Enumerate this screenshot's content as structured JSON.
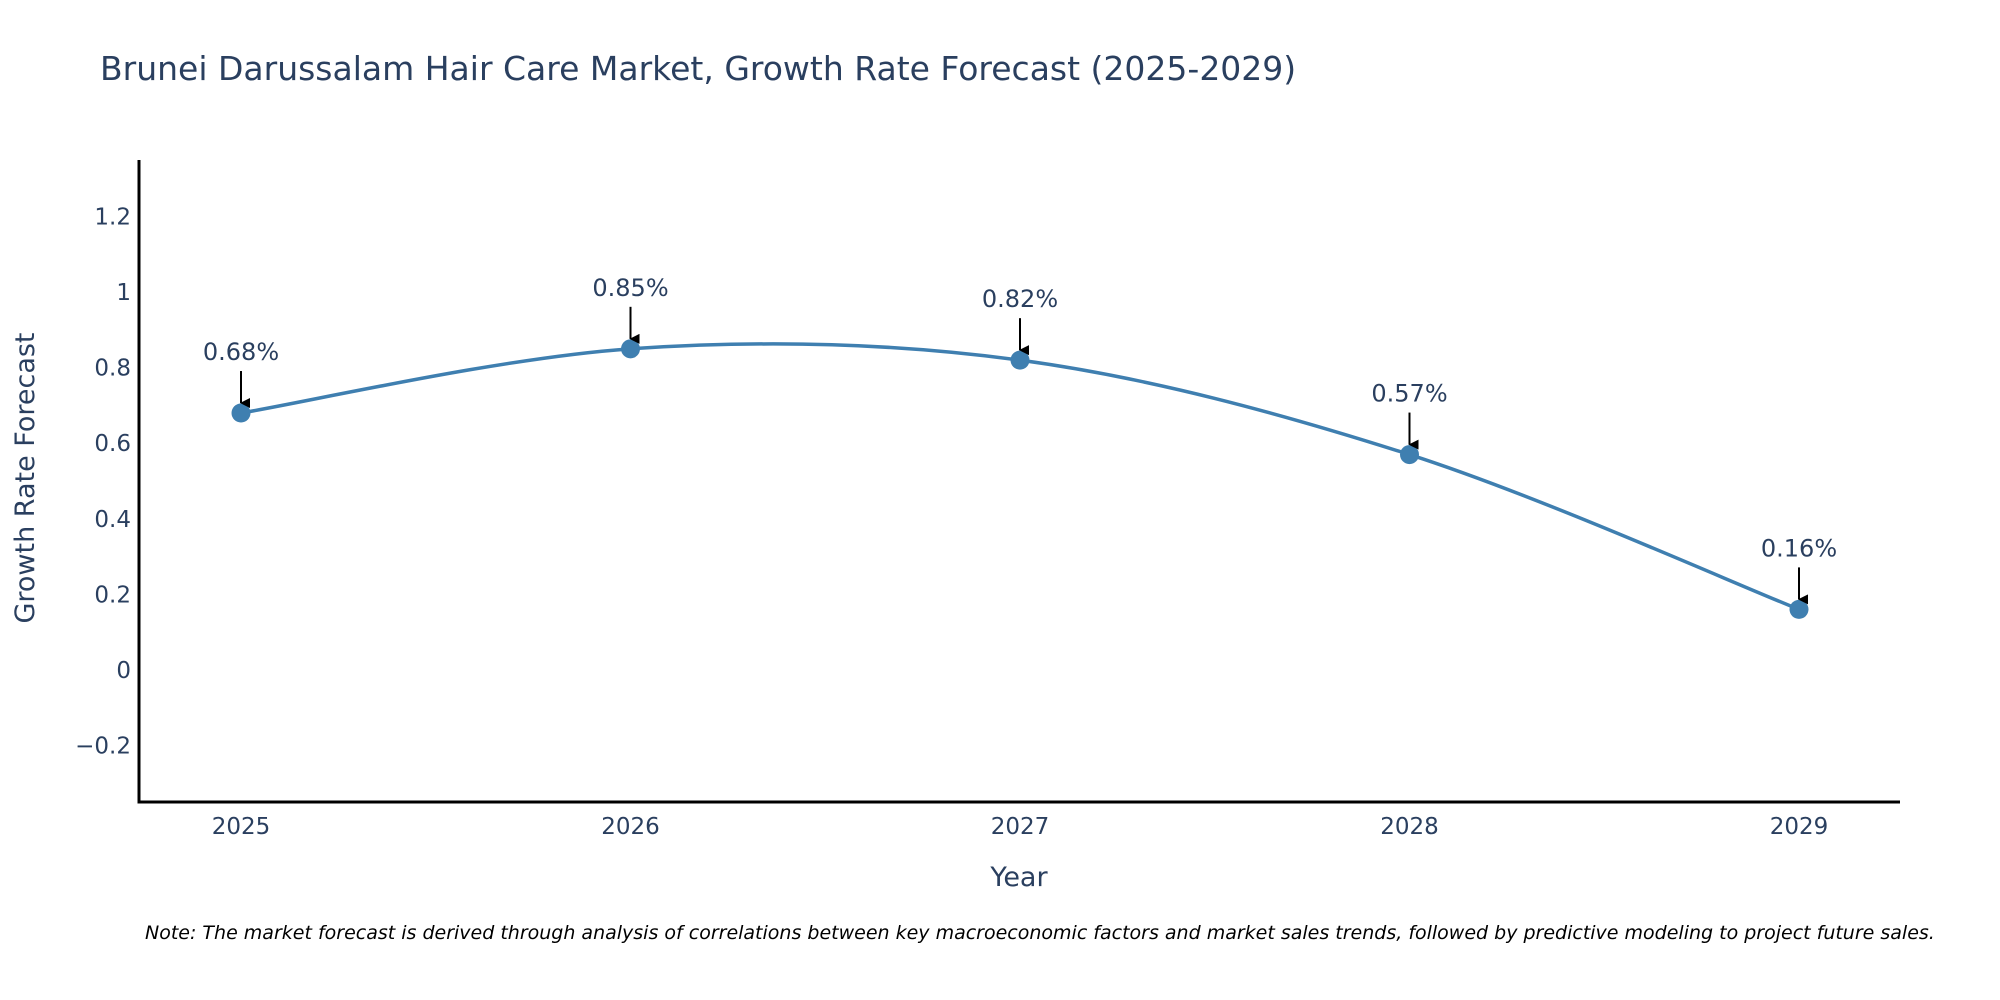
{
  "chart_data": {
    "type": "line",
    "title": "Brunei Darussalam Hair Care Market, Growth Rate Forecast (2025-2029)",
    "xlabel": "Year",
    "ylabel": "Growth Rate Forecast",
    "categories": [
      "2025",
      "2026",
      "2027",
      "2028",
      "2029"
    ],
    "values": [
      0.68,
      0.85,
      0.82,
      0.57,
      0.16
    ],
    "data_labels": [
      "0.68%",
      "0.85%",
      "0.82%",
      "0.57%",
      "0.16%"
    ],
    "ylim": [
      -0.35,
      1.35
    ],
    "yticks": [
      -0.2,
      0,
      0.2,
      0.4,
      0.6,
      0.8,
      1,
      1.2
    ],
    "ytick_labels": [
      "−0.2",
      "0",
      "0.2",
      "0.4",
      "0.6",
      "0.8",
      "1",
      "1.2"
    ],
    "grid": false,
    "line_shape": "spline",
    "line_color": "#3f7fb0",
    "marker_color": "#3f7fb0",
    "annotation_arrow_color": "#000000",
    "axis_color": "#000000",
    "text_color": "#2a3f5f",
    "note": "Note: The market forecast is derived through analysis of correlations between key macroeconomic factors and market sales trends, followed by predictive modeling to project future sales."
  }
}
